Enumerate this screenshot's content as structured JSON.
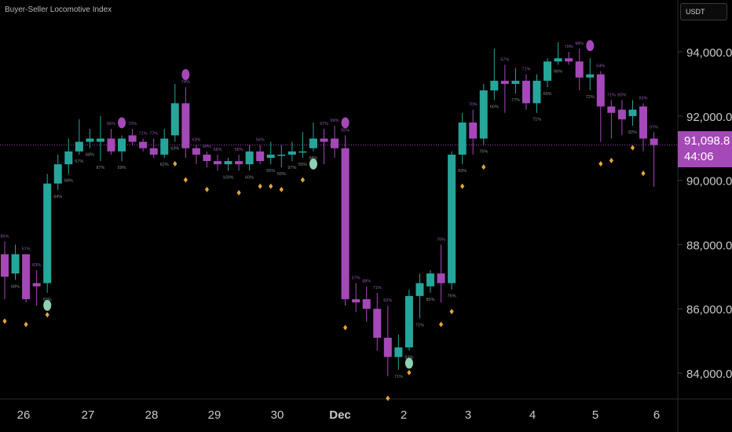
{
  "header": {
    "indicator_title": "Buyer-Seller Locomotive Index",
    "currency_button": "USDT"
  },
  "price_tag": {
    "price": "91,098.8",
    "countdown": "44:06"
  },
  "colors": {
    "bull": "#26a69a",
    "bear": "#a548b8",
    "signal_diamond": "#e6a53a",
    "bull_dot": "#8fcfb2",
    "bear_dot": "#a548b8",
    "price_line": "#a548b8",
    "pct_text": "#7c8b88",
    "pct_bear_text": "#8b57a8"
  },
  "chart_data": {
    "type": "candlestick",
    "y_axis": {
      "ticks": [
        "84,000.0",
        "86,000.0",
        "88,000.0",
        "90,000.0",
        "92,000.0",
        "94,000.0"
      ],
      "tick_values": [
        84000,
        86000,
        88000,
        90000,
        92000,
        94000
      ]
    },
    "x_axis": {
      "labels": [
        "26",
        "27",
        "28",
        "29",
        "30",
        "Dec",
        "2",
        "3",
        "4",
        "5",
        "6"
      ]
    },
    "current_price": 91098.8,
    "candles": [
      {
        "o": 87700,
        "h": 88100,
        "l": 86300,
        "c": 87000,
        "pct": "86%"
      },
      {
        "o": 87100,
        "h": 88000,
        "l": 86900,
        "c": 87700,
        "pct": "68%"
      },
      {
        "o": 87700,
        "h": 87700,
        "l": 86200,
        "c": 86300,
        "pct": "57%"
      },
      {
        "o": 86800,
        "h": 87200,
        "l": 86100,
        "c": 86700,
        "pct": "83%"
      },
      {
        "o": 86800,
        "h": 90200,
        "l": 86500,
        "c": 89900,
        "pct": "82%"
      },
      {
        "o": 89900,
        "h": 90800,
        "l": 89700,
        "c": 90500,
        "pct": "64%"
      },
      {
        "o": 90500,
        "h": 91300,
        "l": 90200,
        "c": 90900,
        "pct": "68%"
      },
      {
        "o": 90900,
        "h": 91900,
        "l": 90800,
        "c": 91200,
        "pct": "57%"
      },
      {
        "o": 91200,
        "h": 91600,
        "l": 91000,
        "c": 91300,
        "pct": "68%"
      },
      {
        "o": 91200,
        "h": 92000,
        "l": 90600,
        "c": 91300,
        "pct": "87%"
      },
      {
        "o": 91300,
        "h": 91600,
        "l": 90800,
        "c": 90900,
        "pct": "66%"
      },
      {
        "o": 90900,
        "h": 91400,
        "l": 90600,
        "c": 91300,
        "pct": "59%"
      },
      {
        "o": 91400,
        "h": 91600,
        "l": 91100,
        "c": 91200,
        "pct": "72%"
      },
      {
        "o": 91200,
        "h": 91300,
        "l": 90900,
        "c": 91000,
        "pct": "71%"
      },
      {
        "o": 91000,
        "h": 91300,
        "l": 90700,
        "c": 90800,
        "pct": "77%"
      },
      {
        "o": 90800,
        "h": 91600,
        "l": 90700,
        "c": 91300,
        "pct": "62%"
      },
      {
        "o": 91400,
        "h": 93000,
        "l": 91200,
        "c": 92400,
        "pct": "63%"
      },
      {
        "o": 92400,
        "h": 92900,
        "l": 90700,
        "c": 91000,
        "pct": "74%"
      },
      {
        "o": 91000,
        "h": 91100,
        "l": 90500,
        "c": 90800,
        "pct": "63%"
      },
      {
        "o": 90800,
        "h": 90900,
        "l": 90400,
        "c": 90600,
        "pct": "64%"
      },
      {
        "o": 90600,
        "h": 90800,
        "l": 90300,
        "c": 90500,
        "pct": "58%"
      },
      {
        "o": 90500,
        "h": 90700,
        "l": 90300,
        "c": 90600,
        "pct": "100%"
      },
      {
        "o": 90600,
        "h": 90800,
        "l": 90300,
        "c": 90500,
        "pct": "58%"
      },
      {
        "o": 90500,
        "h": 91100,
        "l": 90300,
        "c": 90900,
        "pct": "60%"
      },
      {
        "o": 90900,
        "h": 91100,
        "l": 90500,
        "c": 90600,
        "pct": "56%"
      },
      {
        "o": 90700,
        "h": 91200,
        "l": 90500,
        "c": 90800,
        "pct": "55%"
      },
      {
        "o": 90800,
        "h": 91100,
        "l": 90400,
        "c": 90800,
        "pct": "55%"
      },
      {
        "o": 90800,
        "h": 91200,
        "l": 90600,
        "c": 90900,
        "pct": "97%"
      },
      {
        "o": 90900,
        "h": 91500,
        "l": 90700,
        "c": 90900,
        "pct": "55%"
      },
      {
        "o": 91000,
        "h": 91800,
        "l": 90900,
        "c": 91300,
        "pct": "98%"
      },
      {
        "o": 91300,
        "h": 91600,
        "l": 90500,
        "c": 91200,
        "pct": "97%"
      },
      {
        "o": 91300,
        "h": 91700,
        "l": 90700,
        "c": 91000,
        "pct": "99%"
      },
      {
        "o": 91000,
        "h": 91400,
        "l": 86100,
        "c": 86300,
        "pct": "55%"
      },
      {
        "o": 86300,
        "h": 86800,
        "l": 85900,
        "c": 86200,
        "pct": "57%"
      },
      {
        "o": 86300,
        "h": 86700,
        "l": 85600,
        "c": 86000,
        "pct": "88%"
      },
      {
        "o": 86000,
        "h": 86500,
        "l": 84700,
        "c": 85100,
        "pct": "71%"
      },
      {
        "o": 85100,
        "h": 86100,
        "l": 83900,
        "c": 84500,
        "pct": "82%"
      },
      {
        "o": 84500,
        "h": 85200,
        "l": 84100,
        "c": 84800,
        "pct": "71%"
      },
      {
        "o": 84800,
        "h": 86600,
        "l": 84700,
        "c": 86400,
        "pct": "82%"
      },
      {
        "o": 86400,
        "h": 87100,
        "l": 85700,
        "c": 86800,
        "pct": "71%"
      },
      {
        "o": 86700,
        "h": 87200,
        "l": 86500,
        "c": 87100,
        "pct": "85%"
      },
      {
        "o": 87100,
        "h": 88000,
        "l": 86200,
        "c": 86800,
        "pct": "76%"
      },
      {
        "o": 86800,
        "h": 90900,
        "l": 86600,
        "c": 90800,
        "pct": "75%"
      },
      {
        "o": 90800,
        "h": 92100,
        "l": 90500,
        "c": 91800,
        "pct": "83%"
      },
      {
        "o": 91800,
        "h": 92200,
        "l": 90800,
        "c": 91300,
        "pct": "70%"
      },
      {
        "o": 91300,
        "h": 93000,
        "l": 91100,
        "c": 92800,
        "pct": "75%"
      },
      {
        "o": 92800,
        "h": 94100,
        "l": 92500,
        "c": 93100,
        "pct": "66%"
      },
      {
        "o": 93100,
        "h": 93600,
        "l": 92100,
        "c": 93000,
        "pct": "57%"
      },
      {
        "o": 93000,
        "h": 93500,
        "l": 92700,
        "c": 93100,
        "pct": "77%"
      },
      {
        "o": 93100,
        "h": 93300,
        "l": 92200,
        "c": 92400,
        "pct": "71%"
      },
      {
        "o": 92400,
        "h": 93300,
        "l": 92100,
        "c": 93100,
        "pct": "71%"
      },
      {
        "o": 93100,
        "h": 93800,
        "l": 92900,
        "c": 93700,
        "pct": "66%"
      },
      {
        "o": 93700,
        "h": 94300,
        "l": 93600,
        "c": 93800,
        "pct": "66%"
      },
      {
        "o": 93800,
        "h": 94000,
        "l": 93600,
        "c": 93700,
        "pct": "70%"
      },
      {
        "o": 93700,
        "h": 94100,
        "l": 92800,
        "c": 93200,
        "pct": "98%"
      },
      {
        "o": 93200,
        "h": 93800,
        "l": 92800,
        "c": 93300,
        "pct": "72%"
      },
      {
        "o": 93300,
        "h": 93400,
        "l": 91200,
        "c": 92300,
        "pct": "54%"
      },
      {
        "o": 92300,
        "h": 92500,
        "l": 91300,
        "c": 92100,
        "pct": "71%"
      },
      {
        "o": 92200,
        "h": 92500,
        "l": 91400,
        "c": 91900,
        "pct": "80%"
      },
      {
        "o": 92000,
        "h": 92500,
        "l": 91700,
        "c": 92200,
        "pct": "82%"
      },
      {
        "o": 92300,
        "h": 92400,
        "l": 90900,
        "c": 91300,
        "pct": "83%"
      },
      {
        "o": 91300,
        "h": 91500,
        "l": 89800,
        "c": 91100,
        "pct": "97%"
      }
    ],
    "bull_signals": [
      4,
      29,
      38
    ],
    "bear_signals": [
      11,
      17,
      32,
      55
    ],
    "diamond_signals": [
      0,
      2,
      4,
      16,
      17,
      19,
      22,
      24,
      25,
      26,
      28,
      32,
      36,
      38,
      41,
      42,
      43,
      45,
      56,
      57,
      59,
      60
    ]
  }
}
